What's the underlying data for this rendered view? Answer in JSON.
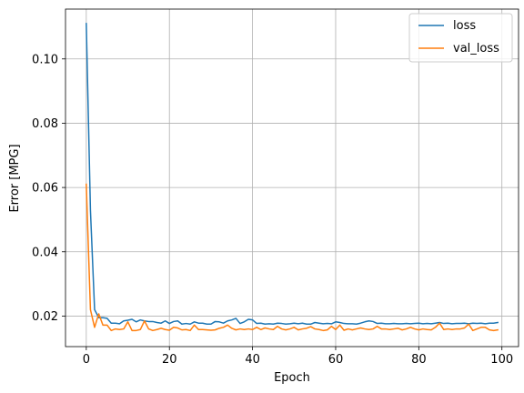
{
  "chart_data": {
    "type": "line",
    "title": "",
    "xlabel": "Epoch",
    "ylabel": "Error [MPG]",
    "xlim": [
      -5,
      104
    ],
    "ylim": [
      0.0105,
      0.1155
    ],
    "xticks": [
      0,
      20,
      40,
      60,
      80,
      100
    ],
    "yticks": [
      0.02,
      0.04,
      0.06,
      0.08,
      0.1
    ],
    "ytick_labels": [
      "0.02",
      "0.04",
      "0.06",
      "0.08",
      "0.10"
    ],
    "grid": true,
    "legend_position": "top-right",
    "x": [
      0,
      1,
      2,
      3,
      4,
      5,
      6,
      7,
      8,
      9,
      10,
      11,
      12,
      13,
      14,
      15,
      16,
      17,
      18,
      19,
      20,
      21,
      22,
      23,
      24,
      25,
      26,
      27,
      28,
      29,
      30,
      31,
      32,
      33,
      34,
      35,
      36,
      37,
      38,
      39,
      40,
      41,
      42,
      43,
      44,
      45,
      46,
      47,
      48,
      49,
      50,
      51,
      52,
      53,
      54,
      55,
      56,
      57,
      58,
      59,
      60,
      61,
      62,
      63,
      64,
      65,
      66,
      67,
      68,
      69,
      70,
      71,
      72,
      73,
      74,
      75,
      76,
      77,
      78,
      79,
      80,
      81,
      82,
      83,
      84,
      85,
      86,
      87,
      88,
      89,
      90,
      91,
      92,
      93,
      94,
      95,
      96,
      97,
      98,
      99
    ],
    "series": [
      {
        "name": "loss",
        "color": "#1f77b4",
        "values": [
          0.111,
          0.053,
          0.022,
          0.0195,
          0.0195,
          0.0193,
          0.0178,
          0.0178,
          0.0176,
          0.0185,
          0.0187,
          0.019,
          0.0182,
          0.0188,
          0.0185,
          0.0183,
          0.0183,
          0.018,
          0.0178,
          0.0185,
          0.0177,
          0.0183,
          0.0185,
          0.0175,
          0.0177,
          0.0175,
          0.0182,
          0.0178,
          0.0178,
          0.0175,
          0.0175,
          0.0183,
          0.0182,
          0.0178,
          0.0185,
          0.0188,
          0.0193,
          0.0177,
          0.0182,
          0.019,
          0.0188,
          0.0177,
          0.0178,
          0.0175,
          0.0176,
          0.0175,
          0.0178,
          0.0177,
          0.0175,
          0.0176,
          0.0178,
          0.0176,
          0.0178,
          0.0175,
          0.0175,
          0.018,
          0.0178,
          0.0176,
          0.0177,
          0.0176,
          0.0182,
          0.018,
          0.0177,
          0.0176,
          0.0176,
          0.0175,
          0.0178,
          0.0182,
          0.0185,
          0.0183,
          0.0177,
          0.0178,
          0.0176,
          0.0176,
          0.0177,
          0.0176,
          0.0176,
          0.0177,
          0.0176,
          0.0177,
          0.0178,
          0.0176,
          0.0177,
          0.0176,
          0.0178,
          0.018,
          0.0177,
          0.0178,
          0.0176,
          0.0177,
          0.0177,
          0.0178,
          0.0176,
          0.0178,
          0.0177,
          0.0178,
          0.0176,
          0.0178,
          0.0178,
          0.018
        ]
      },
      {
        "name": "val_loss",
        "color": "#ff7f0e",
        "values": [
          0.061,
          0.022,
          0.0165,
          0.0207,
          0.0172,
          0.0172,
          0.0155,
          0.016,
          0.0158,
          0.016,
          0.0182,
          0.0155,
          0.0155,
          0.0158,
          0.0185,
          0.016,
          0.0155,
          0.0158,
          0.0162,
          0.0158,
          0.0156,
          0.0165,
          0.0163,
          0.0157,
          0.0158,
          0.0155,
          0.0172,
          0.0158,
          0.0158,
          0.0157,
          0.0156,
          0.0157,
          0.0162,
          0.0165,
          0.0172,
          0.0162,
          0.0157,
          0.016,
          0.0158,
          0.016,
          0.0158,
          0.0165,
          0.0158,
          0.0163,
          0.016,
          0.0158,
          0.0168,
          0.016,
          0.0157,
          0.016,
          0.0165,
          0.0157,
          0.016,
          0.0162,
          0.0167,
          0.016,
          0.0158,
          0.0155,
          0.0157,
          0.0168,
          0.0158,
          0.0172,
          0.0156,
          0.016,
          0.0157,
          0.016,
          0.0163,
          0.016,
          0.0158,
          0.016,
          0.0168,
          0.016,
          0.016,
          0.0158,
          0.016,
          0.0162,
          0.0157,
          0.016,
          0.0165,
          0.016,
          0.0157,
          0.016,
          0.0158,
          0.0157,
          0.0165,
          0.0178,
          0.0158,
          0.016,
          0.0158,
          0.016,
          0.016,
          0.0163,
          0.0175,
          0.0155,
          0.016,
          0.0165,
          0.0165,
          0.0157,
          0.0155,
          0.0157
        ]
      }
    ]
  }
}
